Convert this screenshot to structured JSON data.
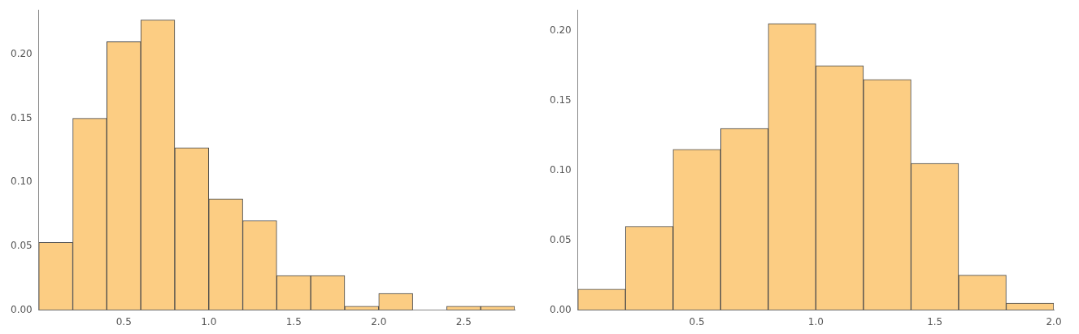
{
  "chart_data": [
    {
      "type": "histogram",
      "bins": [
        0,
        0.2,
        0.4,
        0.6,
        0.8,
        1.0,
        1.2,
        1.4,
        1.6,
        1.8,
        2.0,
        2.2,
        2.4,
        2.6,
        2.8
      ],
      "values": [
        0.053,
        0.15,
        0.21,
        0.227,
        0.127,
        0.087,
        0.07,
        0.027,
        0.027,
        0.003,
        0.013,
        0,
        0.003,
        0.003
      ],
      "color": "#fccd83",
      "xlim": [
        0,
        2.8
      ],
      "xticks": [
        {
          "value": 0.5,
          "label": "0.5"
        },
        {
          "value": 1,
          "label": "1.0"
        },
        {
          "value": 1.5,
          "label": "1.5"
        },
        {
          "value": 2,
          "label": "2.0"
        },
        {
          "value": 2.5,
          "label": "2.5"
        }
      ],
      "ylim": [
        0,
        0.235
      ],
      "yticks": [
        {
          "value": 0,
          "label": "0.00"
        },
        {
          "value": 0.05,
          "label": "0.05"
        },
        {
          "value": 0.1,
          "label": "0.10"
        },
        {
          "value": 0.15,
          "label": "0.15"
        },
        {
          "value": 0.2,
          "label": "0.20"
        }
      ],
      "grid": false
    },
    {
      "type": "histogram",
      "bins": [
        0,
        0.2,
        0.4,
        0.6,
        0.8,
        1.0,
        1.2,
        1.4,
        1.6,
        1.8,
        2.0
      ],
      "values": [
        0.015,
        0.06,
        0.115,
        0.13,
        0.205,
        0.175,
        0.165,
        0.105,
        0.025,
        0.005
      ],
      "color": "#fccd83",
      "xlim": [
        0,
        2.0
      ],
      "xticks": [
        {
          "value": 0.5,
          "label": "0.5"
        },
        {
          "value": 1,
          "label": "1.0"
        },
        {
          "value": 1.5,
          "label": "1.5"
        },
        {
          "value": 2,
          "label": "2.0"
        }
      ],
      "ylim": [
        0,
        0.215
      ],
      "yticks": [
        {
          "value": 0,
          "label": "0.00"
        },
        {
          "value": 0.05,
          "label": "0.05"
        },
        {
          "value": 0.1,
          "label": "0.10"
        },
        {
          "value": 0.15,
          "label": "0.15"
        },
        {
          "value": 0.2,
          "label": "0.20"
        }
      ],
      "grid": false
    }
  ]
}
